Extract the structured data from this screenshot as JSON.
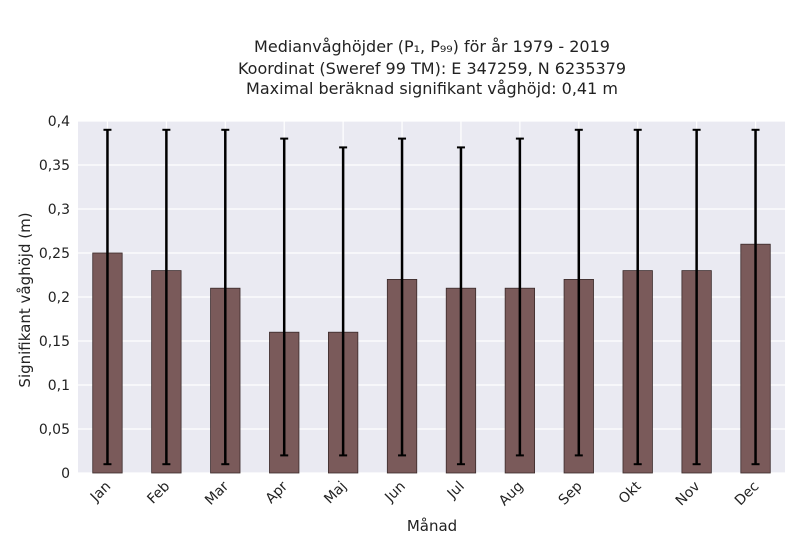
{
  "chart_data": {
    "type": "bar",
    "title_lines": [
      "Medianvåghöjder (P₁, P₉₉) för år 1979 - 2019",
      "Koordinat (Sweref 99 TM): E 347259, N 6235379",
      "Maximal beräknad signifikant våghöjd: 0,41 m"
    ],
    "xlabel": "Månad",
    "ylabel": "Signifikant våghöjd (m)",
    "categories": [
      "Jan",
      "Feb",
      "Mar",
      "Apr",
      "Maj",
      "Jun",
      "Jul",
      "Aug",
      "Sep",
      "Okt",
      "Nov",
      "Dec"
    ],
    "values": [
      0.25,
      0.23,
      0.21,
      0.16,
      0.16,
      0.22,
      0.21,
      0.21,
      0.22,
      0.23,
      0.23,
      0.26
    ],
    "err_low": [
      0.01,
      0.01,
      0.01,
      0.02,
      0.02,
      0.02,
      0.01,
      0.02,
      0.02,
      0.01,
      0.01,
      0.01
    ],
    "err_high": [
      0.39,
      0.39,
      0.39,
      0.38,
      0.37,
      0.38,
      0.37,
      0.38,
      0.39,
      0.39,
      0.39,
      0.39
    ],
    "ylim": [
      0,
      0.4
    ],
    "yticks": [
      0,
      0.05,
      0.1,
      0.15,
      0.2,
      0.25,
      0.3,
      0.35,
      0.4
    ],
    "ytick_labels": [
      "0",
      "0,05",
      "0,1",
      "0,15",
      "0,2",
      "0,25",
      "0,3",
      "0,35",
      "0,4"
    ],
    "grid": true,
    "colors": {
      "bar": "#7a5a5a",
      "background": "#eaeaf2",
      "errorbar": "#000000"
    }
  }
}
